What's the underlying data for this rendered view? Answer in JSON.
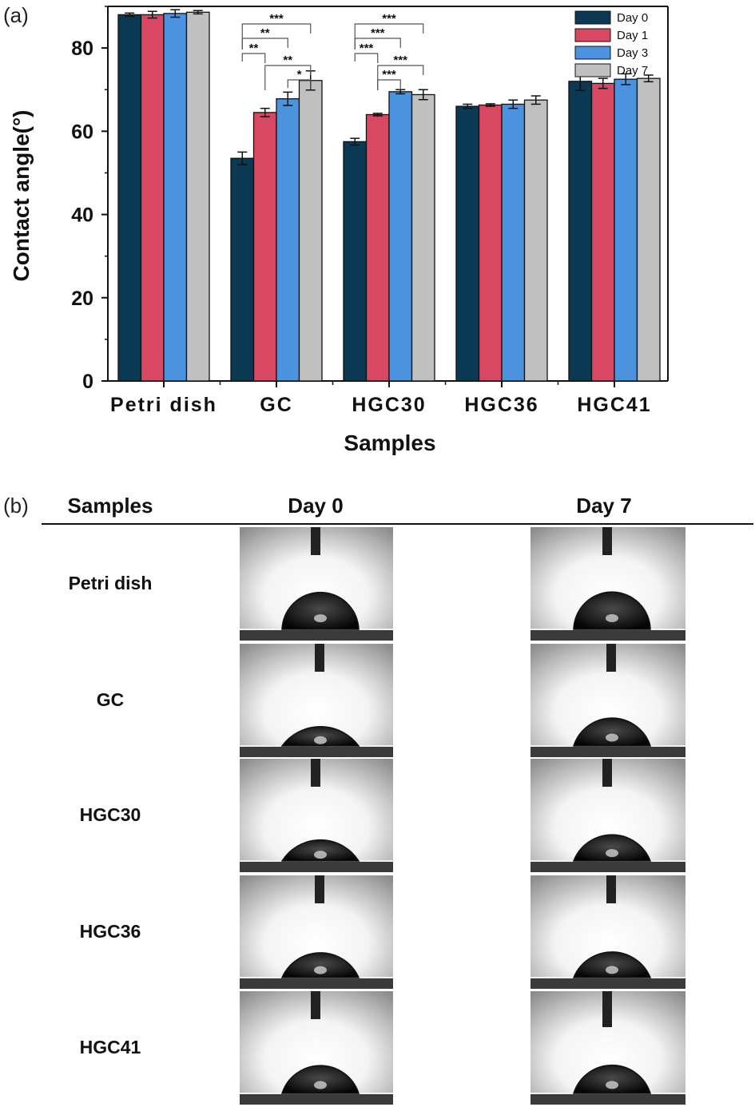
{
  "panel_a_label": "(a)",
  "panel_b_label": "(b)",
  "chart_data": {
    "type": "bar",
    "title": "",
    "xlabel": "Samples",
    "ylabel": "Contact angle(°)",
    "ylim": [
      0,
      90
    ],
    "yticks": [
      0,
      20,
      40,
      60,
      80
    ],
    "categories": [
      "Petri dish",
      "GC",
      "HGC30",
      "HGC36",
      "HGC41"
    ],
    "legend_position": "top-right",
    "grid": false,
    "series": [
      {
        "name": "Day 0",
        "color": "#0b3954",
        "values": [
          88.0,
          53.5,
          57.5,
          66.0,
          72.0
        ],
        "errors": [
          0.4,
          1.5,
          0.8,
          0.5,
          2.2
        ]
      },
      {
        "name": "Day 1",
        "color": "#d94862",
        "values": [
          88.0,
          64.5,
          64.0,
          66.3,
          71.5
        ],
        "errors": [
          0.8,
          1.0,
          0.3,
          0.3,
          1.2
        ]
      },
      {
        "name": "Day 3",
        "color": "#4b93de",
        "values": [
          88.3,
          67.8,
          69.5,
          66.5,
          72.5
        ],
        "errors": [
          0.9,
          1.6,
          0.5,
          1.0,
          1.3
        ]
      },
      {
        "name": "Day 7",
        "color": "#c0c0c0",
        "values": [
          88.6,
          72.2,
          68.8,
          67.5,
          72.7
        ],
        "errors": [
          0.4,
          2.3,
          1.2,
          1.0,
          0.8
        ]
      }
    ],
    "significance": [
      {
        "category": "GC",
        "from": 0,
        "to": 3,
        "label": "***"
      },
      {
        "category": "GC",
        "from": 0,
        "to": 2,
        "label": "**"
      },
      {
        "category": "GC",
        "from": 0,
        "to": 1,
        "label": "**"
      },
      {
        "category": "GC",
        "from": 1,
        "to": 3,
        "label": "**"
      },
      {
        "category": "GC",
        "from": 2,
        "to": 3,
        "label": "*"
      },
      {
        "category": "HGC30",
        "from": 0,
        "to": 3,
        "label": "***"
      },
      {
        "category": "HGC30",
        "from": 0,
        "to": 2,
        "label": "***"
      },
      {
        "category": "HGC30",
        "from": 0,
        "to": 1,
        "label": "***"
      },
      {
        "category": "HGC30",
        "from": 1,
        "to": 3,
        "label": "***"
      },
      {
        "category": "HGC30",
        "from": 1,
        "to": 2,
        "label": "***"
      }
    ]
  },
  "panel_b": {
    "header_samples": "Samples",
    "header_day0": "Day 0",
    "header_day7": "Day 7",
    "rows": [
      "Petri dish",
      "GC",
      "HGC30",
      "HGC36",
      "HGC41"
    ],
    "contact_angles_day0": [
      88.0,
      53.5,
      57.5,
      66.0,
      72.0
    ],
    "contact_angles_day7": [
      88.6,
      72.2,
      68.8,
      67.5,
      72.7
    ]
  }
}
